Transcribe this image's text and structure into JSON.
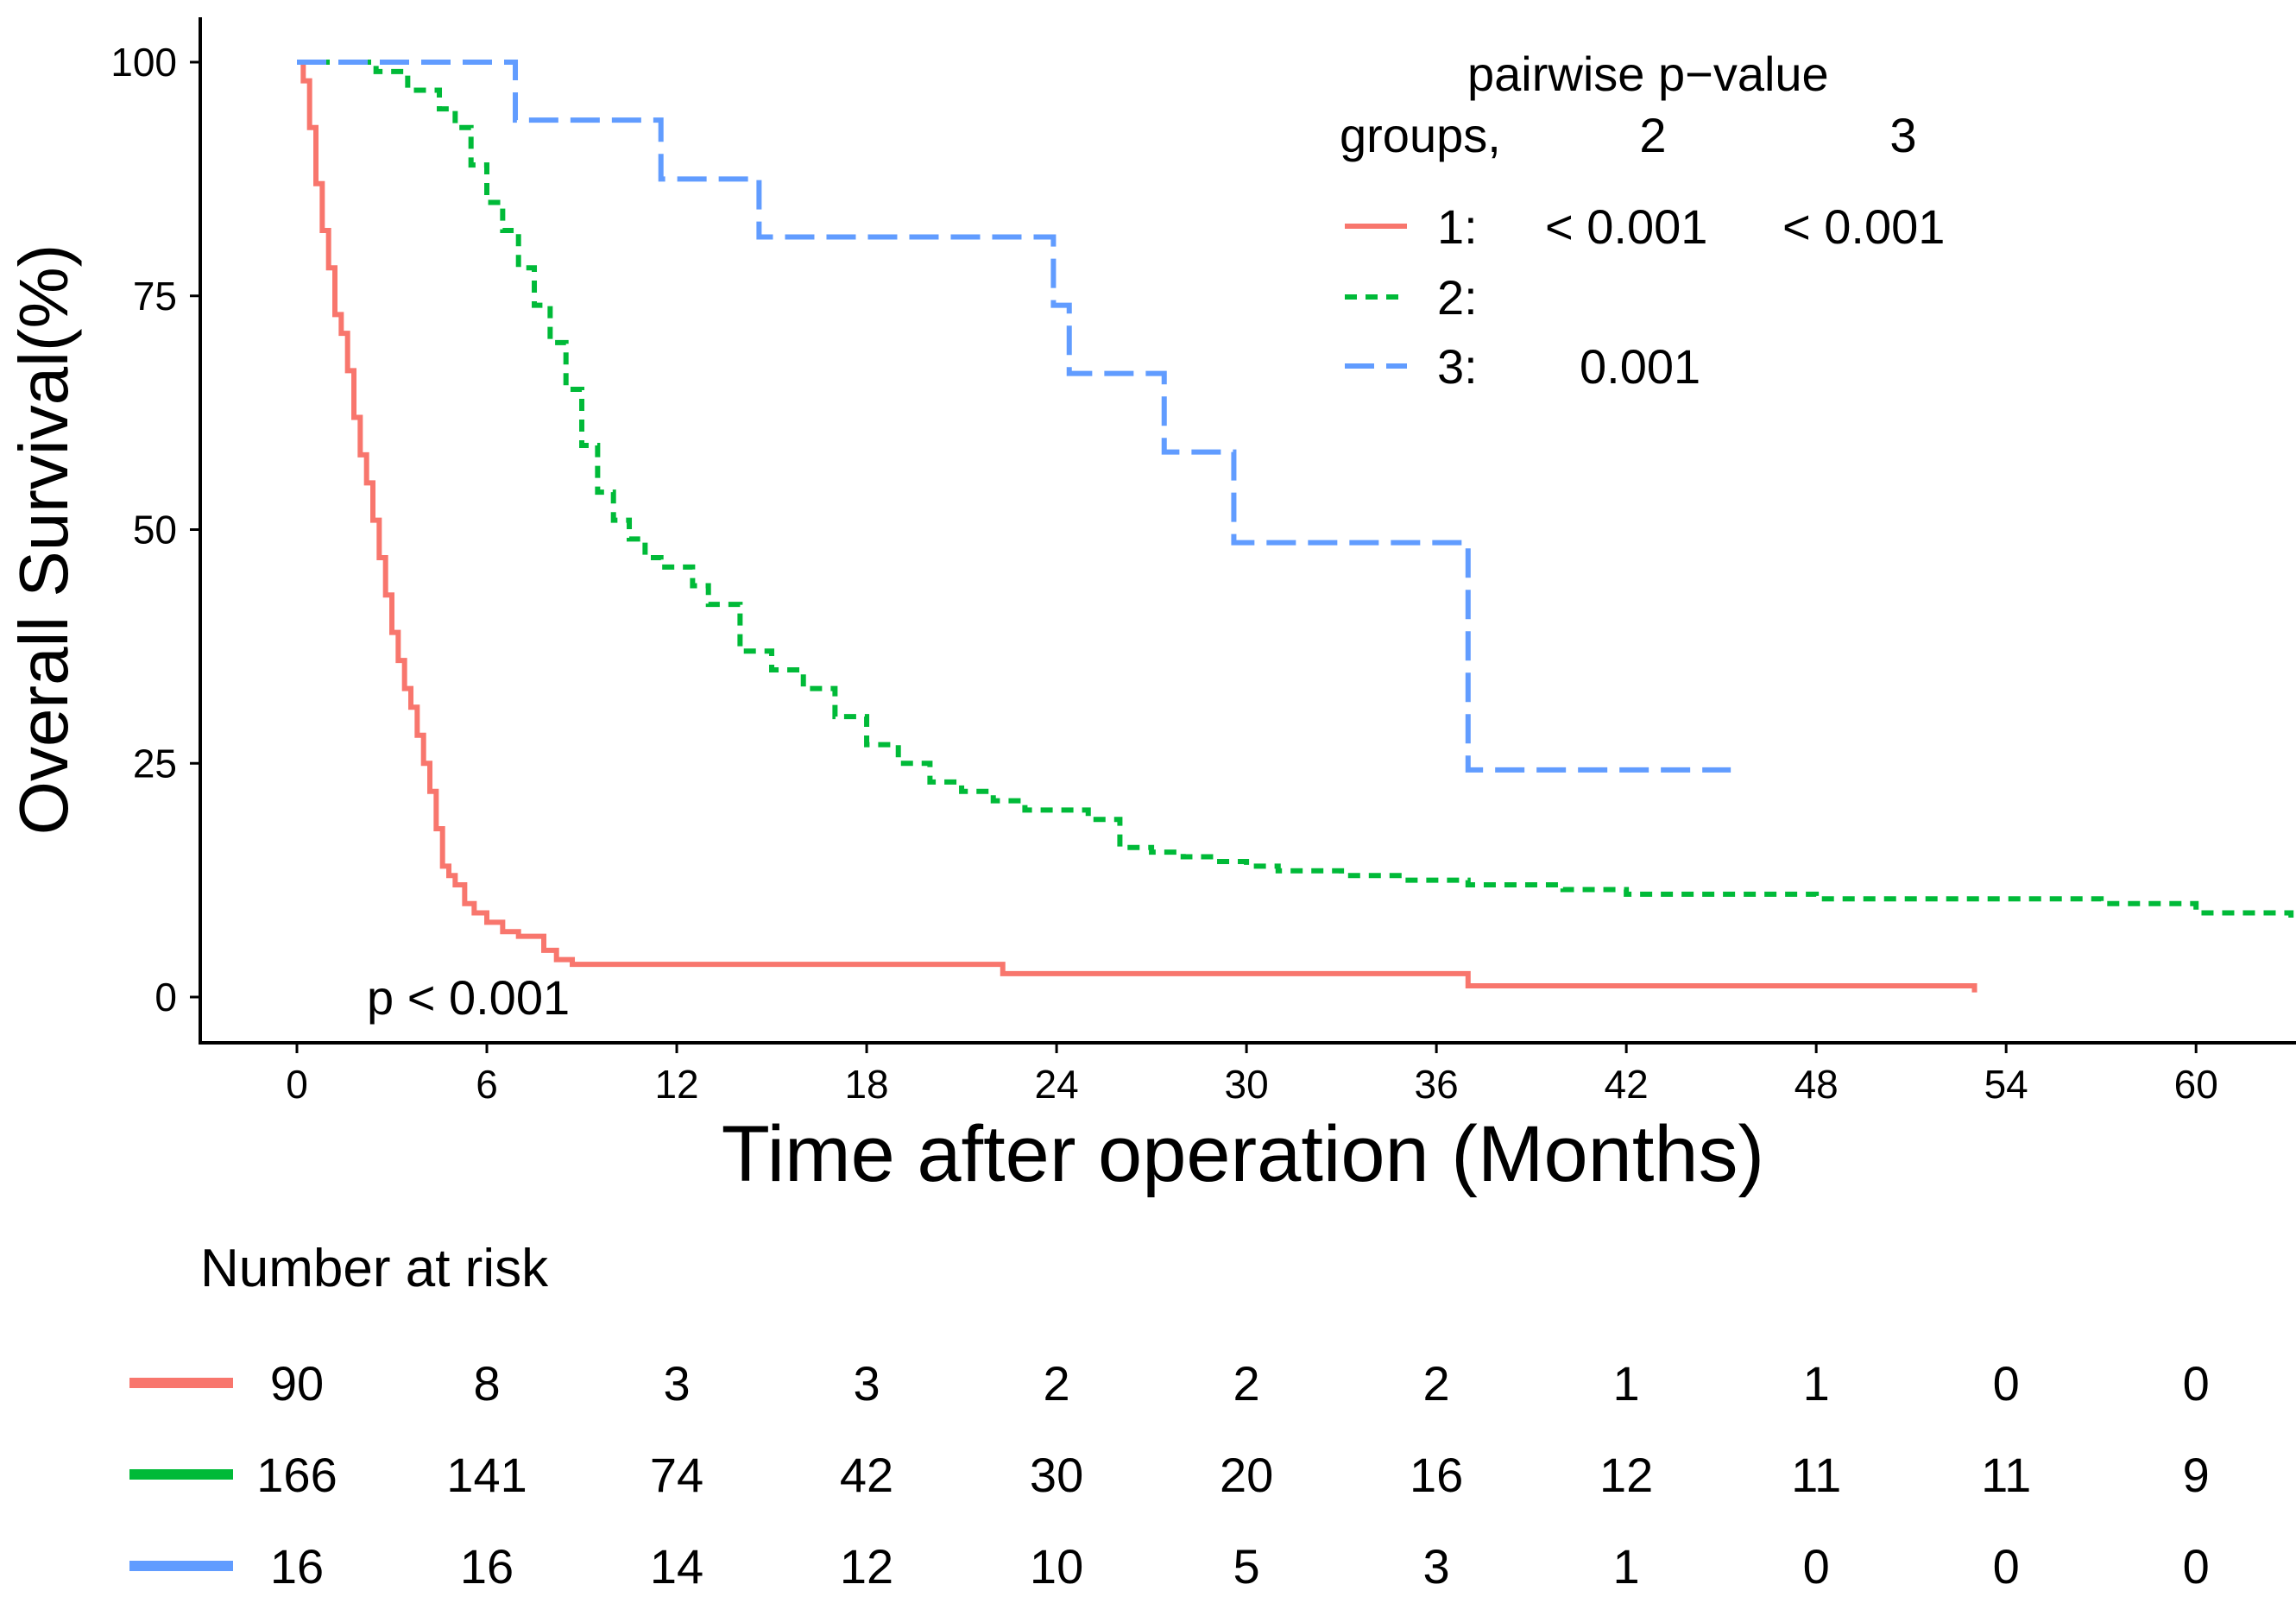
{
  "chart_data": {
    "type": "line",
    "subtype": "kaplan-meier",
    "title": "",
    "xlabel": "Time after operation (Months)",
    "ylabel": "Overall Survival(%)",
    "xlim": [
      -6,
      63
    ],
    "ylim": [
      0,
      100
    ],
    "xticks": [
      "0",
      "6",
      "12",
      "18",
      "24",
      "30",
      "36",
      "42",
      "48",
      "54",
      "60"
    ],
    "yticks": [
      "0",
      "25",
      "50",
      "75",
      "100"
    ],
    "grid": false,
    "legend_placement": "top-right",
    "p_value_label": "p < 0.001",
    "legend": {
      "header_line1": "pairwise p−value",
      "header_groups": "groups,",
      "col2": "2",
      "col3": "3",
      "rows": [
        {
          "label": "1:",
          "p2": "< 0.001",
          "p3": "< 0.001"
        },
        {
          "label": "2:",
          "p2": "",
          "p3": ""
        },
        {
          "label": "3:",
          "p2": "0.001",
          "p3": ""
        }
      ]
    },
    "series": [
      {
        "name": "1",
        "color": "#F8766D",
        "dash": "solid",
        "x": [
          0,
          0.2,
          0.4,
          0.6,
          0.8,
          1.0,
          1.2,
          1.4,
          1.6,
          1.8,
          2.0,
          2.2,
          2.4,
          2.6,
          2.8,
          3.0,
          3.2,
          3.4,
          3.6,
          3.8,
          4.0,
          4.2,
          4.4,
          4.6,
          4.8,
          5.0,
          5.3,
          5.6,
          6.0,
          6.5,
          7.0,
          7.8,
          8.2,
          8.7,
          22.3,
          37.0,
          53.0
        ],
        "y": [
          100,
          98,
          93,
          87,
          82,
          78,
          73,
          71,
          67,
          62,
          58,
          55,
          51,
          47,
          43,
          39,
          36,
          33,
          31,
          28,
          25,
          22,
          18,
          14,
          13,
          12,
          10,
          9,
          8,
          7,
          6.5,
          5,
          4,
          3.5,
          2.5,
          1.2,
          0.5
        ]
      },
      {
        "name": "2",
        "color": "#00BA38",
        "dash": "dotted",
        "x": [
          0,
          2.5,
          3.5,
          4.5,
          5.0,
          5.5,
          6.0,
          6.5,
          7.0,
          7.5,
          8.0,
          8.5,
          9.0,
          9.5,
          10.0,
          10.5,
          11.0,
          11.5,
          12.5,
          13.0,
          14.0,
          15.0,
          16.0,
          17.0,
          18.0,
          19.0,
          20.0,
          21.0,
          22.0,
          23.0,
          25.0,
          26.0,
          27.0,
          28.0,
          29.0,
          30.0,
          31.0,
          33.0,
          35.0,
          37.0,
          40.0,
          42.0,
          48.0,
          57.0,
          60.0,
          63.0
        ],
        "y": [
          100,
          99,
          97,
          95,
          93,
          89,
          85,
          82,
          78,
          74,
          70,
          65,
          59,
          54,
          51,
          49,
          47,
          46,
          44,
          42,
          37,
          35,
          33,
          30,
          27,
          25,
          23,
          22,
          21,
          20,
          19,
          16,
          15.5,
          15,
          14.5,
          14,
          13.5,
          13,
          12.5,
          12,
          11.5,
          11,
          10.5,
          10,
          9,
          8.5
        ]
      },
      {
        "name": "3",
        "color": "#619CFF",
        "dash": "dashed",
        "x": [
          0,
          6.9,
          11.5,
          14.6,
          23.9,
          24.4,
          27.4,
          29.6,
          37.0,
          45.3
        ],
        "y": [
          100,
          93.8,
          87.5,
          81.3,
          74.0,
          66.7,
          58.3,
          48.6,
          24.3,
          24.3
        ]
      }
    ],
    "risk_table": {
      "title": "Number at risk",
      "rows": [
        {
          "group": "1",
          "color": "#F8766D",
          "values": [
            "90",
            "8",
            "3",
            "3",
            "2",
            "2",
            "2",
            "1",
            "1",
            "0",
            "0"
          ]
        },
        {
          "group": "2",
          "color": "#00BA38",
          "values": [
            "166",
            "141",
            "74",
            "42",
            "30",
            "20",
            "16",
            "12",
            "11",
            "11",
            "9"
          ]
        },
        {
          "group": "3",
          "color": "#619CFF",
          "values": [
            "16",
            "16",
            "14",
            "12",
            "10",
            "5",
            "3",
            "1",
            "0",
            "0",
            "0"
          ]
        }
      ]
    }
  }
}
